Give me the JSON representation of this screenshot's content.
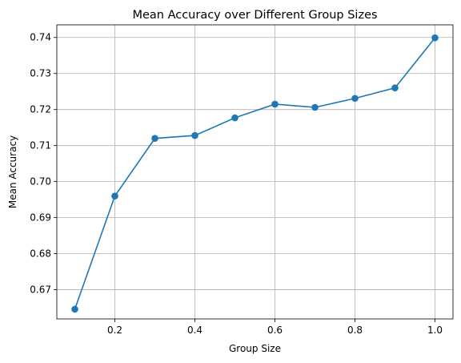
{
  "chart_data": {
    "type": "line",
    "title": "Mean Accuracy over Different Group Sizes",
    "xlabel": "Group Size",
    "ylabel": "Mean Accuracy",
    "x": [
      0.1,
      0.2,
      0.3,
      0.4,
      0.5,
      0.6,
      0.7,
      0.8,
      0.9,
      1.0
    ],
    "series": [
      {
        "values": [
          0.6646,
          0.696,
          0.712,
          0.7128,
          0.7177,
          0.7215,
          0.7206,
          0.7231,
          0.726,
          0.7399
        ],
        "color": "#1f77b4",
        "marker": "circle"
      }
    ],
    "xlim": [
      0.055,
      1.045
    ],
    "ylim": [
      0.6619,
      0.7435
    ],
    "xticks": [
      0.2,
      0.4,
      0.6,
      0.8,
      1.0
    ],
    "xtick_labels": [
      "0.2",
      "0.4",
      "0.6",
      "0.8",
      "1.0"
    ],
    "yticks": [
      0.67,
      0.68,
      0.69,
      0.7,
      0.71,
      0.72,
      0.73,
      0.74
    ],
    "ytick_labels": [
      "0.67",
      "0.68",
      "0.69",
      "0.70",
      "0.71",
      "0.72",
      "0.73",
      "0.74"
    ],
    "grid": true,
    "legend": "none"
  }
}
